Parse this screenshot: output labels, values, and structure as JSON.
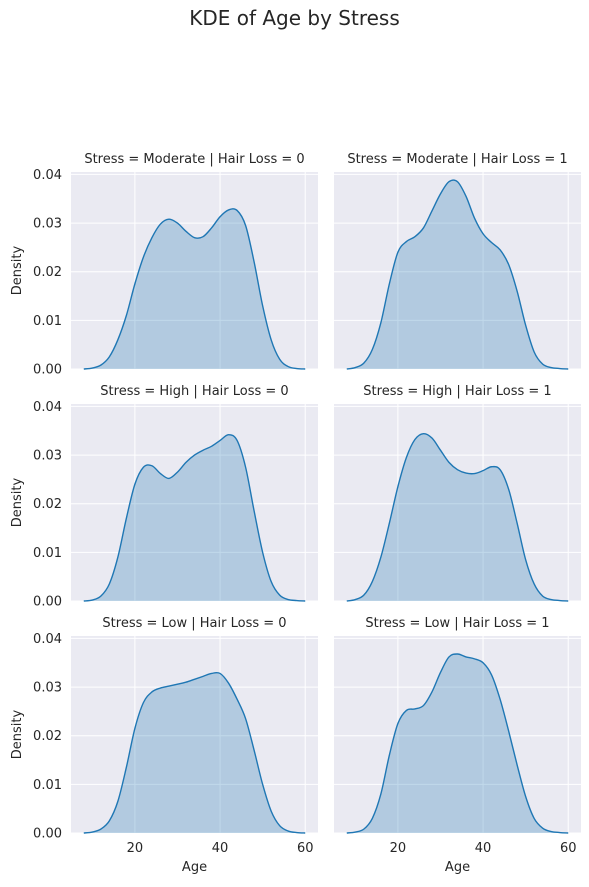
{
  "figure": {
    "suptitle": "KDE of Age by Stress"
  },
  "style": {
    "panel_bg": "#eaeaf2",
    "grid": "#ffffff",
    "line_color": "#1f77b4",
    "fill_color": "#1f77b4",
    "fill_opacity": 0.28,
    "text_color": "#262626"
  },
  "chart_data": {
    "type": "area",
    "description_kind": "kde-facet-grid",
    "xlabel": "Age",
    "ylabel": "Density",
    "xlim": [
      5,
      63
    ],
    "ylim": [
      0,
      0.0405
    ],
    "xticks": [
      20,
      40,
      60
    ],
    "yticks": [
      0.0,
      0.01,
      0.02,
      0.03,
      0.04
    ],
    "ytick_labels": [
      "0.00",
      "0.01",
      "0.02",
      "0.03",
      "0.04"
    ],
    "xtick_labels": [
      "20",
      "40",
      "60"
    ],
    "grid": true,
    "panels": [
      {
        "title": "Stress = Moderate | Hair Loss = 0",
        "row": 0,
        "col": 0,
        "x": [
          8,
          10,
          12,
          14,
          16,
          18,
          20,
          22,
          24,
          26,
          28,
          30,
          32,
          34,
          36,
          38,
          40,
          42,
          44,
          46,
          48,
          50,
          52,
          54,
          56,
          58,
          60
        ],
        "y": [
          0.0,
          0.0002,
          0.0008,
          0.0025,
          0.006,
          0.011,
          0.0175,
          0.023,
          0.027,
          0.0298,
          0.0308,
          0.03,
          0.0283,
          0.027,
          0.0272,
          0.029,
          0.0313,
          0.0327,
          0.0326,
          0.0295,
          0.022,
          0.013,
          0.006,
          0.002,
          0.0005,
          0.0001,
          0.0
        ]
      },
      {
        "title": "Stress = Moderate | Hair Loss = 1",
        "row": 0,
        "col": 1,
        "x": [
          8,
          10,
          12,
          14,
          16,
          18,
          20,
          22,
          24,
          26,
          28,
          30,
          32,
          34,
          36,
          38,
          40,
          42,
          44,
          46,
          48,
          50,
          52,
          54,
          56,
          58,
          60
        ],
        "y": [
          0.0,
          0.0003,
          0.0012,
          0.004,
          0.0095,
          0.0175,
          0.024,
          0.0262,
          0.0272,
          0.029,
          0.0325,
          0.036,
          0.0385,
          0.0385,
          0.0355,
          0.031,
          0.0278,
          0.026,
          0.0245,
          0.0215,
          0.016,
          0.009,
          0.0035,
          0.001,
          0.0003,
          0.0001,
          0.0
        ]
      },
      {
        "title": "Stress = High | Hair Loss = 0",
        "row": 1,
        "col": 0,
        "x": [
          8,
          10,
          12,
          14,
          16,
          18,
          20,
          22,
          24,
          26,
          28,
          30,
          32,
          34,
          36,
          38,
          40,
          42,
          44,
          46,
          48,
          50,
          52,
          54,
          56,
          58,
          60
        ],
        "y": [
          0.0,
          0.0002,
          0.001,
          0.0035,
          0.009,
          0.017,
          0.024,
          0.0275,
          0.0278,
          0.0262,
          0.0252,
          0.0265,
          0.0285,
          0.03,
          0.031,
          0.0318,
          0.033,
          0.0342,
          0.033,
          0.0275,
          0.0185,
          0.01,
          0.004,
          0.0012,
          0.0003,
          0.0001,
          0.0
        ]
      },
      {
        "title": "Stress = High | Hair Loss = 1",
        "row": 1,
        "col": 1,
        "x": [
          8,
          10,
          12,
          14,
          16,
          18,
          20,
          22,
          24,
          26,
          28,
          30,
          32,
          34,
          36,
          38,
          40,
          42,
          44,
          46,
          48,
          50,
          52,
          54,
          56,
          58,
          60
        ],
        "y": [
          0.0,
          0.0003,
          0.0012,
          0.004,
          0.009,
          0.016,
          0.0235,
          0.0295,
          0.0332,
          0.0344,
          0.0335,
          0.031,
          0.0285,
          0.027,
          0.0263,
          0.0262,
          0.0268,
          0.0276,
          0.027,
          0.023,
          0.016,
          0.0085,
          0.0035,
          0.001,
          0.0003,
          0.0001,
          0.0
        ]
      },
      {
        "title": "Stress = Low | Hair Loss = 0",
        "row": 2,
        "col": 0,
        "x": [
          8,
          10,
          12,
          14,
          16,
          18,
          20,
          22,
          24,
          26,
          28,
          30,
          32,
          34,
          36,
          38,
          40,
          42,
          44,
          46,
          48,
          50,
          52,
          54,
          56,
          58,
          60
        ],
        "y": [
          0.0,
          0.0002,
          0.0008,
          0.0025,
          0.0065,
          0.0135,
          0.0215,
          0.0268,
          0.029,
          0.0298,
          0.0302,
          0.0306,
          0.031,
          0.0316,
          0.0322,
          0.0328,
          0.0328,
          0.0308,
          0.0275,
          0.0235,
          0.017,
          0.01,
          0.0045,
          0.0015,
          0.0004,
          0.0001,
          0.0
        ]
      },
      {
        "title": "Stress = Low | Hair Loss = 1",
        "row": 2,
        "col": 1,
        "x": [
          8,
          10,
          12,
          14,
          16,
          18,
          20,
          22,
          24,
          26,
          28,
          30,
          32,
          34,
          36,
          38,
          40,
          42,
          44,
          46,
          48,
          50,
          52,
          54,
          56,
          58,
          60
        ],
        "y": [
          0.0,
          0.0002,
          0.0008,
          0.003,
          0.008,
          0.016,
          0.0225,
          0.0252,
          0.0255,
          0.0262,
          0.029,
          0.033,
          0.0362,
          0.0368,
          0.0362,
          0.0358,
          0.035,
          0.0325,
          0.0275,
          0.021,
          0.014,
          0.0075,
          0.003,
          0.001,
          0.0003,
          0.0001,
          0.0
        ]
      }
    ]
  }
}
